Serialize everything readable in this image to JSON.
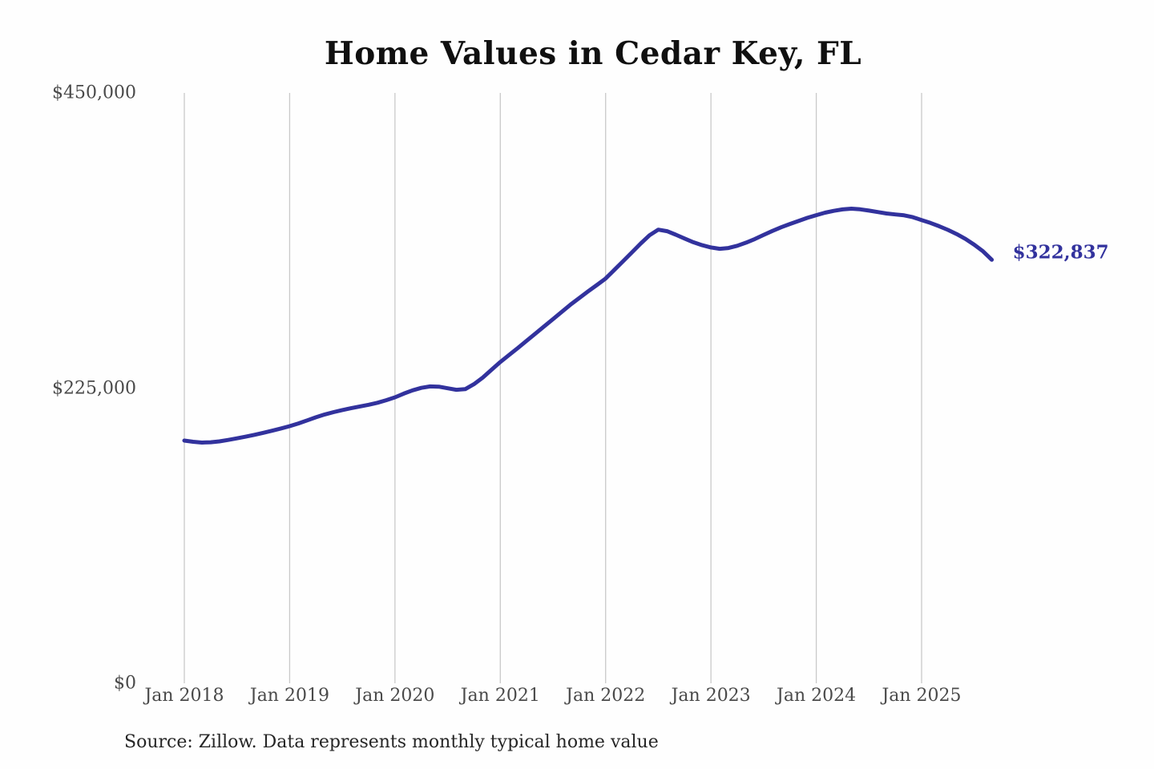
{
  "header": {
    "title": "Home Values in Cedar Key, FL"
  },
  "chart_data": {
    "type": "line",
    "title": "Home Values in Cedar Key, FL",
    "unit": "USD",
    "grid": "vertical-only",
    "legend": "none",
    "ylim": [
      0,
      450000
    ],
    "line_color": "#32329d",
    "tick_color": "#4a4a4a",
    "gridline_color": "#c9c9c9",
    "series": [
      {
        "name": "Monthly typical home value",
        "x": [
          "2018-01",
          "2018-02",
          "2018-03",
          "2018-04",
          "2018-05",
          "2018-06",
          "2018-07",
          "2018-08",
          "2018-09",
          "2018-10",
          "2018-11",
          "2018-12",
          "2019-01",
          "2019-02",
          "2019-03",
          "2019-04",
          "2019-05",
          "2019-06",
          "2019-07",
          "2019-08",
          "2019-09",
          "2019-10",
          "2019-11",
          "2019-12",
          "2020-01",
          "2020-02",
          "2020-03",
          "2020-04",
          "2020-05",
          "2020-06",
          "2020-07",
          "2020-08",
          "2020-09",
          "2020-10",
          "2020-11",
          "2020-12",
          "2021-01",
          "2021-02",
          "2021-03",
          "2021-04",
          "2021-05",
          "2021-06",
          "2021-07",
          "2021-08",
          "2021-09",
          "2021-10",
          "2021-11",
          "2021-12",
          "2022-01",
          "2022-02",
          "2022-03",
          "2022-04",
          "2022-05",
          "2022-06",
          "2022-07",
          "2022-08",
          "2022-09",
          "2022-10",
          "2022-11",
          "2022-12",
          "2023-01",
          "2023-02",
          "2023-03",
          "2023-04",
          "2023-05",
          "2023-06",
          "2023-07",
          "2023-08",
          "2023-09",
          "2023-10",
          "2023-11",
          "2023-12",
          "2024-01",
          "2024-02",
          "2024-03",
          "2024-04",
          "2024-05",
          "2024-06",
          "2024-07",
          "2024-08",
          "2024-09",
          "2024-10",
          "2024-11",
          "2024-12",
          "2025-01",
          "2025-02",
          "2025-03",
          "2025-04",
          "2025-05",
          "2025-06",
          "2025-07",
          "2025-08",
          "2025-09"
        ],
        "values": [
          185000,
          184100,
          183500,
          183700,
          184400,
          185500,
          186700,
          188000,
          189400,
          190900,
          192500,
          194200,
          196000,
          198100,
          200400,
          202800,
          204900,
          206700,
          208300,
          209700,
          211000,
          212300,
          213800,
          215800,
          218000,
          220800,
          223300,
          225200,
          226300,
          226100,
          224900,
          223700,
          224200,
          228000,
          233000,
          239000,
          244900,
          250200,
          255600,
          261100,
          266600,
          272100,
          277600,
          283100,
          288600,
          293700,
          298700,
          303600,
          308500,
          315200,
          321800,
          328500,
          335200,
          341500,
          345800,
          344600,
          341900,
          339000,
          336200,
          333900,
          332200,
          331200,
          331800,
          333500,
          335900,
          338600,
          341800,
          344800,
          347600,
          350100,
          352400,
          354800,
          356800,
          358700,
          360100,
          361200,
          361800,
          361300,
          360300,
          359200,
          358100,
          357400,
          356700,
          355300,
          353100,
          350900,
          348400,
          345600,
          342400,
          338700,
          334300,
          329200,
          322837
        ]
      }
    ],
    "x_ticks": [
      {
        "x": "2018-01",
        "label": "Jan 2018"
      },
      {
        "x": "2019-01",
        "label": "Jan 2019"
      },
      {
        "x": "2020-01",
        "label": "Jan 2020"
      },
      {
        "x": "2021-01",
        "label": "Jan 2021"
      },
      {
        "x": "2022-01",
        "label": "Jan 2022"
      },
      {
        "x": "2023-01",
        "label": "Jan 2023"
      },
      {
        "x": "2024-01",
        "label": "Jan 2024"
      },
      {
        "x": "2025-01",
        "label": "Jan 2025"
      }
    ],
    "y_ticks": [
      {
        "value": 0,
        "label": "$0"
      },
      {
        "value": 225000,
        "label": "$225,000"
      },
      {
        "value": 450000,
        "label": "$450,000"
      }
    ],
    "end_label": "$322,837",
    "end_value": 322837
  },
  "footer": {
    "source": "Source: Zillow. Data represents monthly typical home value"
  }
}
